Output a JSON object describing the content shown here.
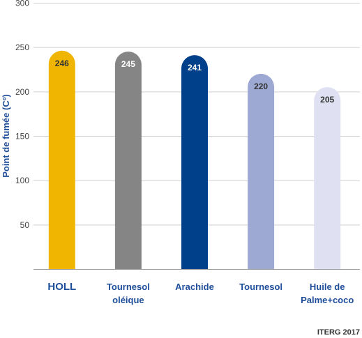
{
  "chart_data": {
    "type": "bar",
    "categories": [
      [
        "HOLL"
      ],
      [
        "Tournesol",
        "oléique"
      ],
      [
        "Arachide"
      ],
      [
        "Tournesol"
      ],
      [
        "Huile de",
        "Palme+coco"
      ]
    ],
    "values": [
      246,
      245,
      241,
      220,
      205
    ],
    "colors": [
      "#efb500",
      "#858585",
      "#003f8a",
      "#9ea9d3",
      "#dfe1f2"
    ],
    "value_label_colors": [
      "#333333",
      "#ffffff",
      "#ffffff",
      "#333333",
      "#333333"
    ],
    "ylabel": "Point de fumée (Cº)",
    "xlabel": "",
    "yticks": [
      50,
      100,
      150,
      200,
      250,
      300
    ],
    "ylim": [
      0,
      300
    ],
    "grid": true,
    "source": "ITERG 2017"
  }
}
